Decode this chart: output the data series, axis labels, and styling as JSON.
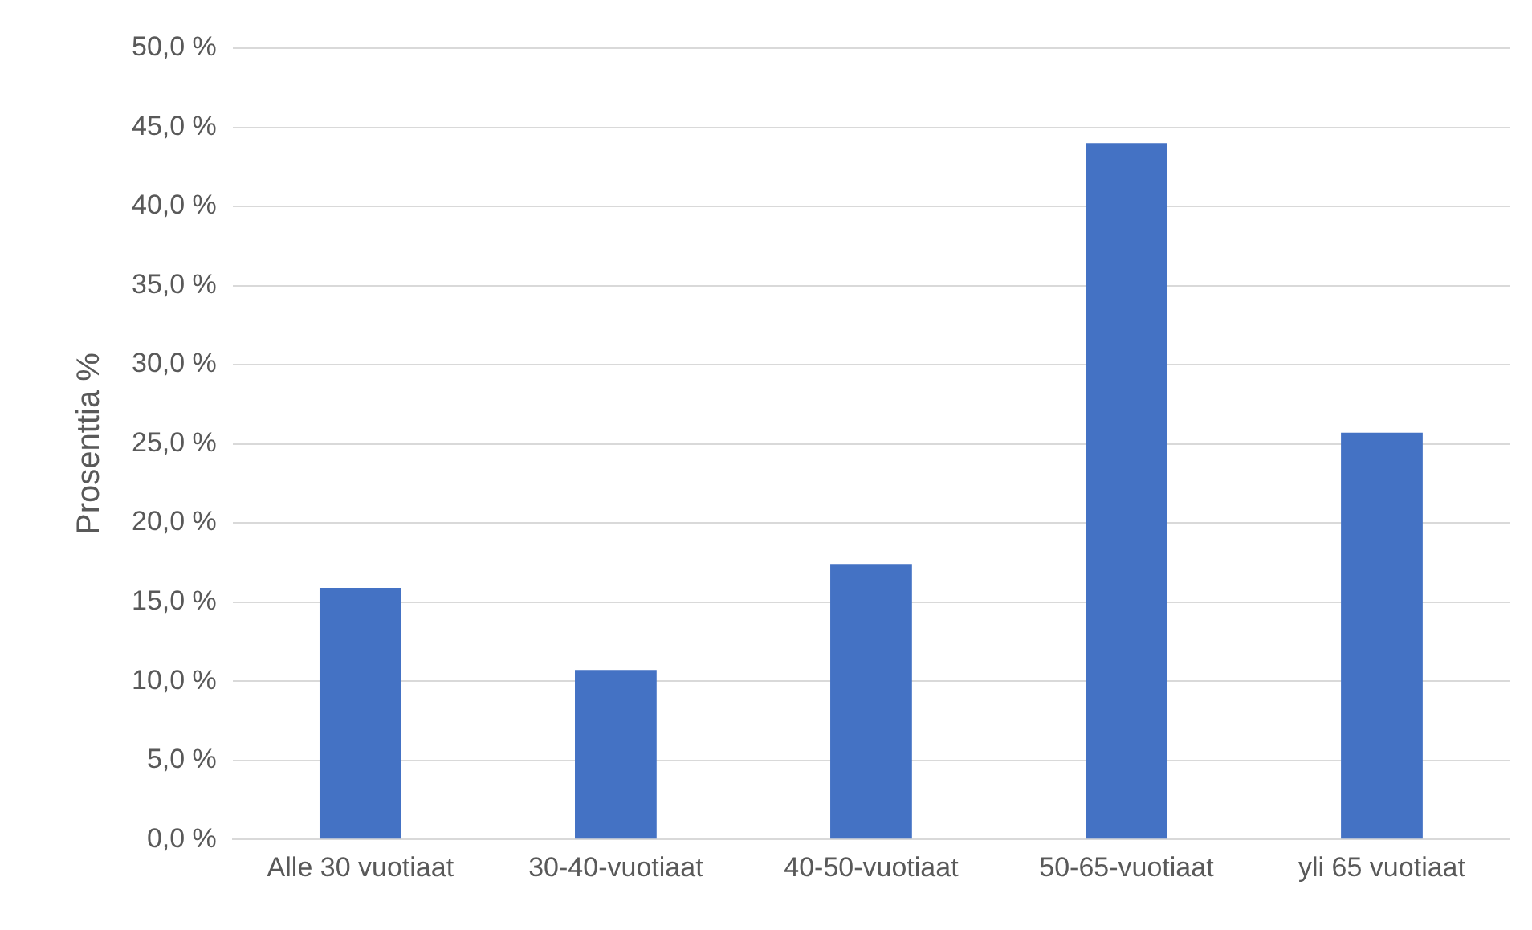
{
  "chart_data": {
    "type": "bar",
    "ylabel": "Prosenttia %",
    "categories": [
      "Alle 30 vuotiaat",
      "30-40-vuotiaat",
      "40-50-vuotiaat",
      "50-65-vuotiaat",
      "yli 65 vuotiaat"
    ],
    "values": [
      15.9,
      10.7,
      17.4,
      44.0,
      25.7
    ],
    "color": "#4472c4",
    "ylim": [
      0,
      50
    ],
    "yticks": [
      {
        "value": 0,
        "label": "0,0 %"
      },
      {
        "value": 5,
        "label": "5,0 %"
      },
      {
        "value": 10,
        "label": "10,0 %"
      },
      {
        "value": 15,
        "label": "15,0 %"
      },
      {
        "value": 20,
        "label": "20,0 %"
      },
      {
        "value": 25,
        "label": "25,0 %"
      },
      {
        "value": 30,
        "label": "30,0 %"
      },
      {
        "value": 35,
        "label": "35,0 %"
      },
      {
        "value": 40,
        "label": "40,0 %"
      },
      {
        "value": 45,
        "label": "45,0 %"
      },
      {
        "value": 50,
        "label": "50,0 %"
      }
    ],
    "grid": "y",
    "legend": false
  }
}
